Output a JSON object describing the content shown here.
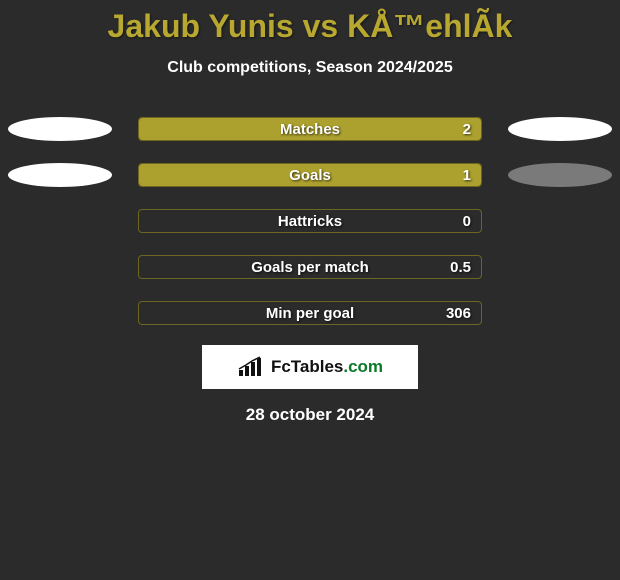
{
  "background_color": "#2b2b2b",
  "title": "Jakub Yunis vs KÅ™ehlÃ­k",
  "title_color": "#b8a82f",
  "title_fontsize": 32,
  "subtitle": "Club competitions, Season 2024/2025",
  "subtitle_color": "#ffffff",
  "subtitle_fontsize": 16,
  "bar_border_color": "#6e651f",
  "bar_fill_color": "#aca02e",
  "text_color": "#ffffff",
  "rows": [
    {
      "label": "Matches",
      "value": "2",
      "fill_pct": 100,
      "left_ellipse_color": "#ffffff",
      "right_ellipse_color": "#ffffff"
    },
    {
      "label": "Goals",
      "value": "1",
      "fill_pct": 100,
      "left_ellipse_color": "#ffffff",
      "right_ellipse_color": "#7a7a7a"
    },
    {
      "label": "Hattricks",
      "value": "0",
      "fill_pct": 0,
      "left_ellipse_color": null,
      "right_ellipse_color": null
    },
    {
      "label": "Goals per match",
      "value": "0.5",
      "fill_pct": 0,
      "left_ellipse_color": null,
      "right_ellipse_color": null
    },
    {
      "label": "Min per goal",
      "value": "306",
      "fill_pct": 0,
      "left_ellipse_color": null,
      "right_ellipse_color": null
    }
  ],
  "logo": {
    "text_main": "FcTables",
    "text_suffix": ".com",
    "icon_color": "#111111"
  },
  "date": "28 october 2024"
}
